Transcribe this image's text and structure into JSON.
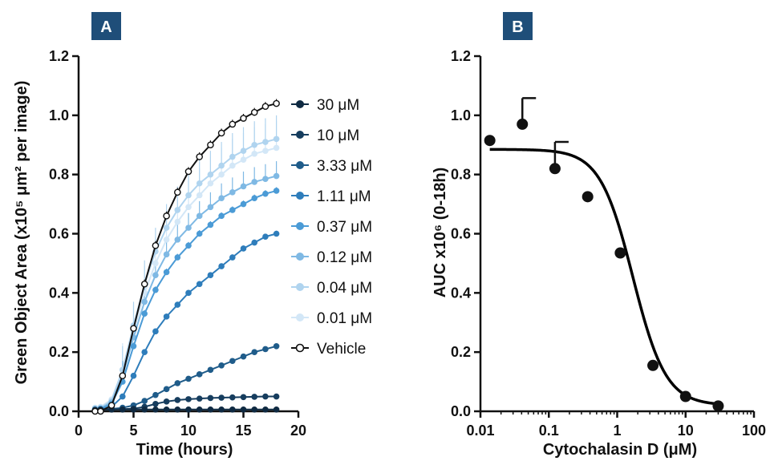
{
  "colors": {
    "panel_label_bg": "#1f4e79",
    "axis": "#111111",
    "vehicle": "#111111",
    "fit_curve": "#000000"
  },
  "chart_data": [
    {
      "panel": "A",
      "type": "line",
      "title": "",
      "xlabel": "Time (hours)",
      "ylabel": "Green Object Area (x10⁵ μm² per image)",
      "xlim": [
        0,
        20
      ],
      "ylim": [
        0,
        1.2
      ],
      "x_ticks": [
        "0",
        "5",
        "10",
        "15",
        "20"
      ],
      "y_ticks": [
        "0.0",
        "0.2",
        "0.4",
        "0.6",
        "0.8",
        "1.0",
        "1.2"
      ],
      "x_tick_values": [
        0,
        5,
        10,
        15,
        20
      ],
      "y_tick_values": [
        0,
        0.2,
        0.4,
        0.6,
        0.8,
        1.0,
        1.2
      ],
      "legend_placement": "right",
      "grid": false,
      "x": [
        1.5,
        2.0,
        3.0,
        4.0,
        5.0,
        6.0,
        7.0,
        8.0,
        9.0,
        10.0,
        11.0,
        12.0,
        13.0,
        14.0,
        15.0,
        16.0,
        17.0,
        18.0
      ],
      "series": [
        {
          "name": "30 μM",
          "color": "#0f2a42",
          "marker": "filled",
          "values": [
            0.005,
            0.006,
            0.006,
            0.006,
            0.006,
            0.006,
            0.006,
            0.006,
            0.006,
            0.006,
            0.006,
            0.006,
            0.006,
            0.006,
            0.006,
            0.006,
            0.006,
            0.006
          ],
          "error": 0
        },
        {
          "name": "10 μM",
          "color": "#163d5e",
          "marker": "filled",
          "values": [
            0.005,
            0.006,
            0.006,
            0.007,
            0.009,
            0.015,
            0.025,
            0.033,
            0.038,
            0.041,
            0.043,
            0.045,
            0.046,
            0.047,
            0.048,
            0.049,
            0.05,
            0.05
          ],
          "error": 0.003
        },
        {
          "name": "3.33 μM",
          "color": "#1f5c8a",
          "marker": "filled",
          "values": [
            0.005,
            0.006,
            0.008,
            0.012,
            0.02,
            0.035,
            0.055,
            0.075,
            0.095,
            0.11,
            0.125,
            0.14,
            0.155,
            0.17,
            0.185,
            0.2,
            0.21,
            0.22
          ],
          "error": 0.008
        },
        {
          "name": "1.11 μM",
          "color": "#2e7dbb",
          "marker": "filled",
          "values": [
            0.005,
            0.006,
            0.015,
            0.05,
            0.12,
            0.2,
            0.27,
            0.32,
            0.36,
            0.4,
            0.43,
            0.46,
            0.49,
            0.52,
            0.55,
            0.57,
            0.59,
            0.6
          ],
          "error": 0.01
        },
        {
          "name": "0.37 μM",
          "color": "#4b9bd6",
          "marker": "filled",
          "values": [
            0.005,
            0.008,
            0.025,
            0.1,
            0.22,
            0.33,
            0.41,
            0.47,
            0.52,
            0.56,
            0.6,
            0.63,
            0.66,
            0.68,
            0.7,
            0.72,
            0.735,
            0.745
          ],
          "error": 0.012
        },
        {
          "name": "0.12 μM",
          "color": "#7fb9e4",
          "marker": "filled",
          "values": [
            0.008,
            0.01,
            0.03,
            0.12,
            0.25,
            0.37,
            0.46,
            0.53,
            0.58,
            0.62,
            0.66,
            0.69,
            0.72,
            0.74,
            0.76,
            0.775,
            0.785,
            0.795
          ],
          "error": 0.05
        },
        {
          "name": "0.04 μM",
          "color": "#b0d4ef",
          "marker": "filled",
          "values": [
            0.01,
            0.012,
            0.035,
            0.14,
            0.29,
            0.43,
            0.54,
            0.62,
            0.68,
            0.73,
            0.77,
            0.8,
            0.83,
            0.86,
            0.88,
            0.9,
            0.91,
            0.92
          ],
          "error": 0.08
        },
        {
          "name": "0.01 μM",
          "color": "#d3e7f7",
          "marker": "filled",
          "values": [
            0.012,
            0.015,
            0.04,
            0.14,
            0.27,
            0.4,
            0.5,
            0.58,
            0.64,
            0.69,
            0.73,
            0.77,
            0.8,
            0.83,
            0.85,
            0.87,
            0.88,
            0.89
          ],
          "error": 0.09
        },
        {
          "name": "Vehicle",
          "color": "#111111",
          "marker": "open",
          "values": [
            0.0,
            0.0,
            0.02,
            0.12,
            0.28,
            0.43,
            0.56,
            0.66,
            0.74,
            0.81,
            0.86,
            0.9,
            0.94,
            0.97,
            0.99,
            1.01,
            1.03,
            1.04
          ],
          "error": 0.015
        }
      ]
    },
    {
      "panel": "B",
      "type": "scatter",
      "title": "",
      "xlabel": "Cytochalasin D (μM)",
      "ylabel": "AUC x10⁶ (0-18h)",
      "xscale": "log",
      "xlim": [
        0.01,
        100
      ],
      "ylim": [
        0,
        1.2
      ],
      "x_ticks": [
        "0.01",
        "0.1",
        "1",
        "10",
        "100"
      ],
      "y_ticks": [
        "0.0",
        "0.2",
        "0.4",
        "0.6",
        "0.8",
        "1.0",
        "1.2"
      ],
      "x_tick_values": [
        0.01,
        0.1,
        1,
        10,
        100
      ],
      "y_tick_values": [
        0,
        0.2,
        0.4,
        0.6,
        0.8,
        1.0,
        1.2
      ],
      "grid": false,
      "x": [
        0.0137,
        0.041,
        0.123,
        0.37,
        1.11,
        3.33,
        10,
        30
      ],
      "y": [
        0.915,
        0.97,
        0.82,
        0.725,
        0.535,
        0.155,
        0.05,
        0.018
      ],
      "error_upper": [
        0,
        0.088,
        0.09,
        0,
        0,
        0,
        0,
        0
      ],
      "fit": {
        "model": "four-parameter logistic",
        "top": 0.885,
        "bottom": 0.02,
        "ic50": 1.7,
        "hill": 1.8
      }
    }
  ],
  "panels": {
    "a_label": "A",
    "b_label": "B"
  }
}
